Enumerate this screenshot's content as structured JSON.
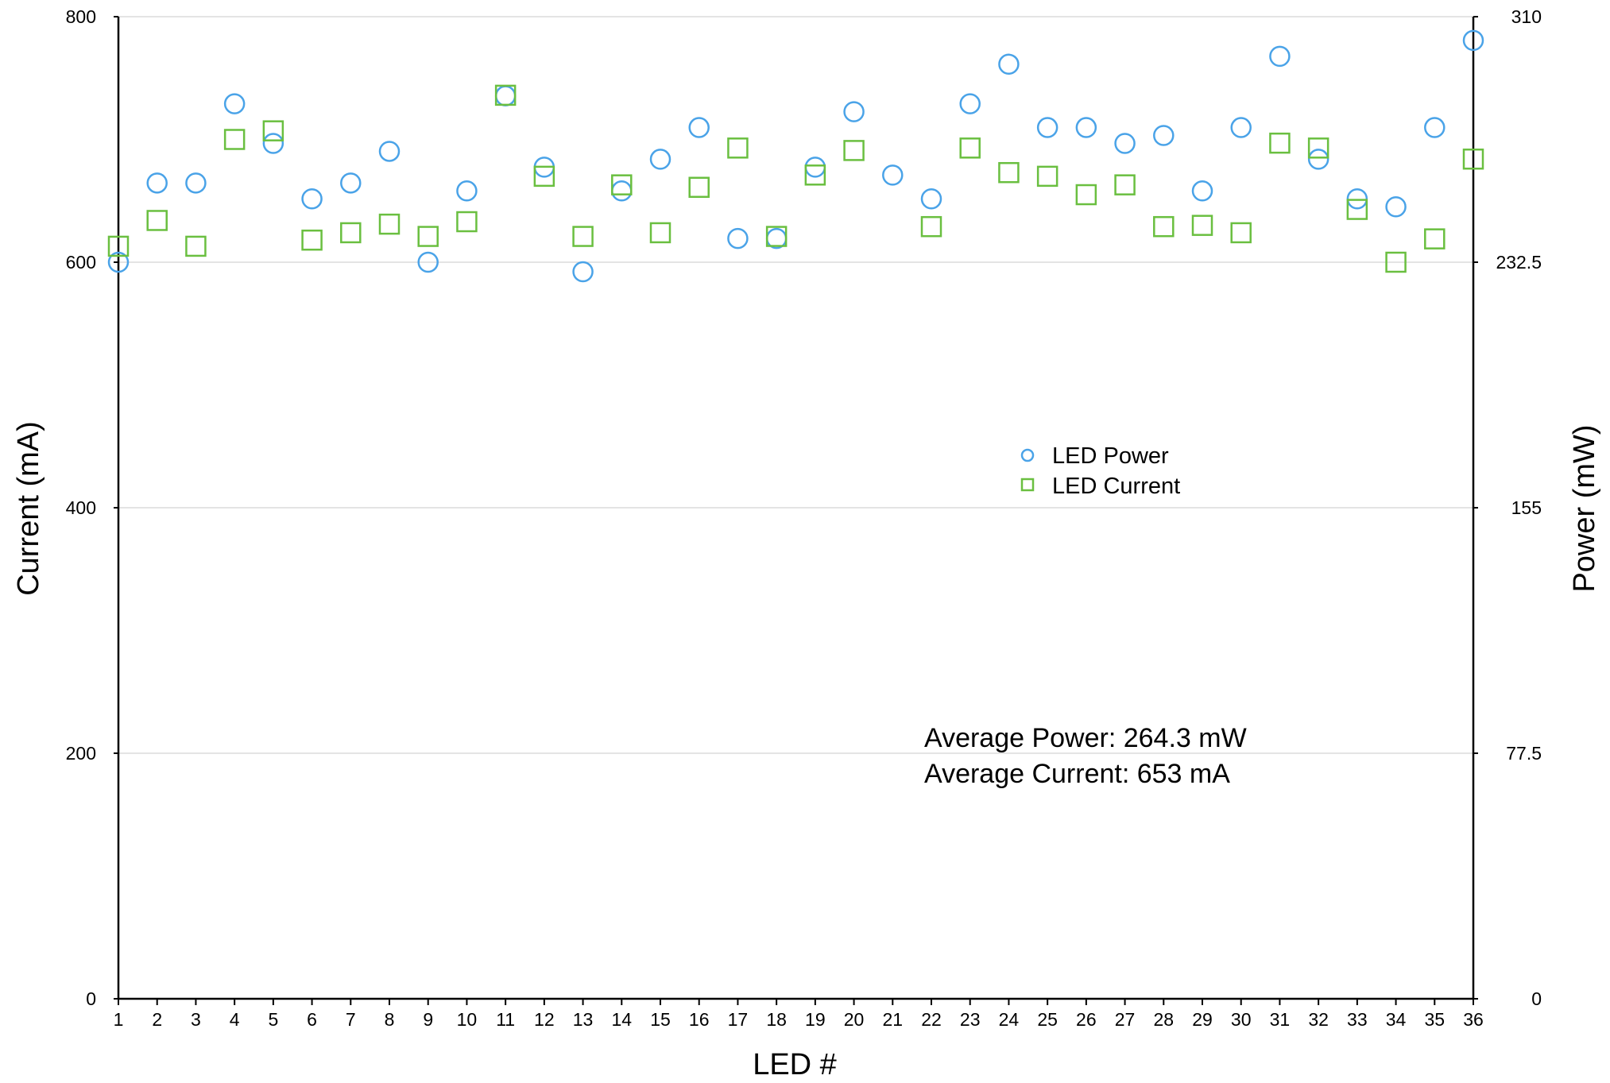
{
  "chart_data": {
    "type": "scatter",
    "title": "",
    "xlabel": "LED #",
    "ylabel": "Current (mA)",
    "y2label": "Power (mW)",
    "x": [
      1,
      2,
      3,
      4,
      5,
      6,
      7,
      8,
      9,
      10,
      11,
      12,
      13,
      14,
      15,
      16,
      17,
      18,
      19,
      20,
      21,
      22,
      23,
      24,
      25,
      26,
      27,
      28,
      29,
      30,
      31,
      32,
      33,
      34,
      35,
      36
    ],
    "xlim": [
      1,
      36
    ],
    "ylim": [
      0,
      800
    ],
    "y2lim": [
      0,
      310
    ],
    "yticks": [
      "0",
      "200",
      "400",
      "600",
      "800"
    ],
    "y2ticks": [
      "0",
      "77.5",
      "155",
      "232.5",
      "310"
    ],
    "grid": "horizontal",
    "legend_position": "center-right",
    "series": [
      {
        "name": "LED Power",
        "axis": "right",
        "marker": "circle",
        "color": "#4aa3e8",
        "values": [
          232.5,
          257.5,
          257.5,
          282.5,
          270,
          252.5,
          257.5,
          267.5,
          232.5,
          255,
          285,
          262.5,
          229.5,
          255,
          265,
          275,
          240,
          240,
          262.5,
          280,
          260,
          252.5,
          282.5,
          295,
          275,
          275,
          270,
          272.5,
          255,
          275,
          297.5,
          265,
          252.5,
          250,
          275,
          302.5
        ]
      },
      {
        "name": "LED Current",
        "axis": "left",
        "marker": "square",
        "color": "#6abf40",
        "values": [
          613,
          634,
          613,
          700,
          707,
          618,
          624,
          631,
          621,
          633,
          736,
          670,
          621,
          663,
          624,
          661,
          693,
          621,
          671,
          691,
          null,
          629,
          693,
          673,
          670,
          655,
          663,
          629,
          630,
          624,
          697,
          693,
          643,
          600,
          619,
          684
        ]
      }
    ],
    "annotations": [
      "Average Power: 264.3 mW",
      "Average Current: 653 mA"
    ]
  }
}
